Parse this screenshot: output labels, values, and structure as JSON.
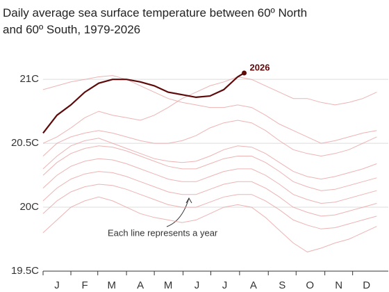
{
  "chart_data": {
    "type": "line",
    "title_lines": [
      "Daily average sea surface temperature between 60º North",
      "and 60º South, 1979-2026"
    ],
    "annotation": "Each line represents a year",
    "x": [
      1,
      16,
      31,
      46,
      61,
      76,
      91,
      106,
      121,
      136,
      151,
      166,
      181,
      196,
      211,
      226,
      241,
      256,
      271,
      286,
      301,
      316,
      331,
      346,
      361
    ],
    "xlim": [
      1,
      366
    ],
    "xticks": [
      {
        "value": 16,
        "label": "J"
      },
      {
        "value": 46,
        "label": "F"
      },
      {
        "value": 75,
        "label": "M"
      },
      {
        "value": 106,
        "label": "A"
      },
      {
        "value": 136,
        "label": "M"
      },
      {
        "value": 167,
        "label": "J"
      },
      {
        "value": 197,
        "label": "J"
      },
      {
        "value": 228,
        "label": "A"
      },
      {
        "value": 259,
        "label": "S"
      },
      {
        "value": 289,
        "label": "O"
      },
      {
        "value": 320,
        "label": "N"
      },
      {
        "value": 350,
        "label": "D"
      }
    ],
    "ylim": [
      19.5,
      21.3
    ],
    "yticks": [
      {
        "value": 19.5,
        "label": "19.5C"
      },
      {
        "value": 20,
        "label": "20C"
      },
      {
        "value": 20.5,
        "label": "20.5C"
      },
      {
        "value": 21,
        "label": "21C"
      }
    ],
    "grid": true,
    "series": [
      {
        "color": "#e79a9a",
        "values": [
          19.95,
          20.05,
          20.12,
          20.16,
          20.18,
          20.17,
          20.14,
          20.1,
          20.06,
          20.02,
          20.0,
          20.0,
          20.04,
          20.08,
          20.1,
          20.1,
          20.05,
          19.98,
          19.9,
          19.86,
          19.83,
          19.84,
          19.87,
          19.9,
          19.93
        ]
      },
      {
        "color": "#e79a9a",
        "values": [
          20.05,
          20.15,
          20.22,
          20.26,
          20.28,
          20.27,
          20.24,
          20.2,
          20.16,
          20.12,
          20.1,
          20.1,
          20.14,
          20.18,
          20.2,
          20.2,
          20.15,
          20.08,
          20.0,
          19.96,
          19.93,
          19.94,
          19.97,
          20.0,
          20.03
        ]
      },
      {
        "color": "#e79a9a",
        "values": [
          20.15,
          20.25,
          20.32,
          20.36,
          20.38,
          20.37,
          20.34,
          20.3,
          20.26,
          20.22,
          20.2,
          20.2,
          20.24,
          20.28,
          20.3,
          20.3,
          20.25,
          20.18,
          20.1,
          20.06,
          20.03,
          20.04,
          20.07,
          20.1,
          20.13
        ]
      },
      {
        "color": "#e79a9a",
        "values": [
          20.25,
          20.35,
          20.42,
          20.46,
          20.48,
          20.47,
          20.44,
          20.4,
          20.36,
          20.32,
          20.3,
          20.3,
          20.34,
          20.38,
          20.4,
          20.4,
          20.35,
          20.28,
          20.2,
          20.16,
          20.13,
          20.14,
          20.17,
          20.2,
          20.23
        ]
      },
      {
        "color": "#e79a9a",
        "values": [
          20.3,
          20.4,
          20.48,
          20.52,
          20.54,
          20.5,
          20.46,
          20.42,
          20.38,
          20.36,
          20.35,
          20.36,
          20.4,
          20.45,
          20.48,
          20.47,
          20.42,
          20.35,
          20.28,
          20.24,
          20.22,
          20.24,
          20.27,
          20.3,
          20.34
        ]
      },
      {
        "color": "#e79a9a",
        "values": [
          20.4,
          20.5,
          20.55,
          20.58,
          20.6,
          20.58,
          20.55,
          20.52,
          20.5,
          20.5,
          20.52,
          20.56,
          20.62,
          20.66,
          20.68,
          20.66,
          20.6,
          20.52,
          20.45,
          20.42,
          20.4,
          20.42,
          20.45,
          20.5,
          20.55
        ]
      },
      {
        "color": "#e79a9a",
        "values": [
          20.5,
          20.55,
          20.62,
          20.7,
          20.75,
          20.72,
          20.7,
          20.68,
          20.72,
          20.78,
          20.85,
          20.9,
          20.95,
          20.98,
          21.02,
          21.0,
          20.95,
          20.9,
          20.85,
          20.85,
          20.82,
          20.8,
          20.82,
          20.85,
          20.9
        ]
      },
      {
        "color": "#e79a9a",
        "values": [
          20.92,
          20.95,
          20.98,
          21.0,
          21.02,
          21.03,
          21.0,
          20.95,
          20.9,
          20.85,
          20.82,
          20.8,
          20.78,
          20.78,
          20.8,
          20.78,
          20.72,
          20.65,
          20.6,
          20.55,
          20.5,
          20.52,
          20.55,
          20.58,
          20.6
        ]
      },
      {
        "color": "#e79a9a",
        "values": [
          19.8,
          19.9,
          20.0,
          20.05,
          20.08,
          20.05,
          20.0,
          19.95,
          19.92,
          19.9,
          19.88,
          19.9,
          19.95,
          20.0,
          20.02,
          20.0,
          19.92,
          19.82,
          19.72,
          19.65,
          19.68,
          19.72,
          19.75,
          19.8,
          19.85
        ]
      },
      {
        "name": "2026",
        "color": "#5c0a0a",
        "x": [
          1,
          16,
          31,
          46,
          61,
          76,
          91,
          106,
          121,
          136,
          151,
          166,
          181,
          196,
          211,
          218
        ],
        "values": [
          20.58,
          20.72,
          20.8,
          20.9,
          20.97,
          21.0,
          21.0,
          20.98,
          20.95,
          20.9,
          20.88,
          20.86,
          20.87,
          20.92,
          21.02,
          21.05
        ]
      }
    ]
  }
}
